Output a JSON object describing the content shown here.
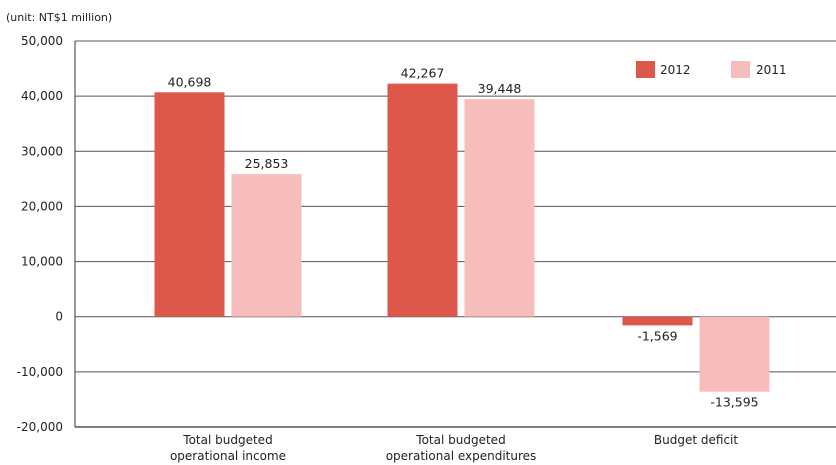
{
  "chart_data": {
    "type": "bar",
    "unit_note": "(unit: NT$1 million)",
    "categories": [
      [
        "Total budgeted",
        "operational income"
      ],
      [
        "Total budgeted",
        "operational expenditures"
      ],
      [
        "Budget deficit"
      ]
    ],
    "series": [
      {
        "name": "2012",
        "color": "#de574b",
        "values": [
          40698,
          42267,
          -1569
        ],
        "labels": [
          "40,698",
          "42,267",
          "-1,569"
        ]
      },
      {
        "name": "2011",
        "color": "#f7bcbc",
        "values": [
          25853,
          39448,
          -13595
        ],
        "labels": [
          "25,853",
          "39,448",
          "-13,595"
        ]
      }
    ],
    "ylim": [
      -20000,
      50000
    ],
    "yticks": [
      50000,
      40000,
      30000,
      20000,
      10000,
      0,
      -10000,
      -20000
    ],
    "ytick_labels": [
      "50,000",
      "40,000",
      "30,000",
      "20,000",
      "10,000",
      "0",
      "-10,000",
      "-20,000"
    ],
    "grid": true,
    "legend_position": "top-right"
  }
}
